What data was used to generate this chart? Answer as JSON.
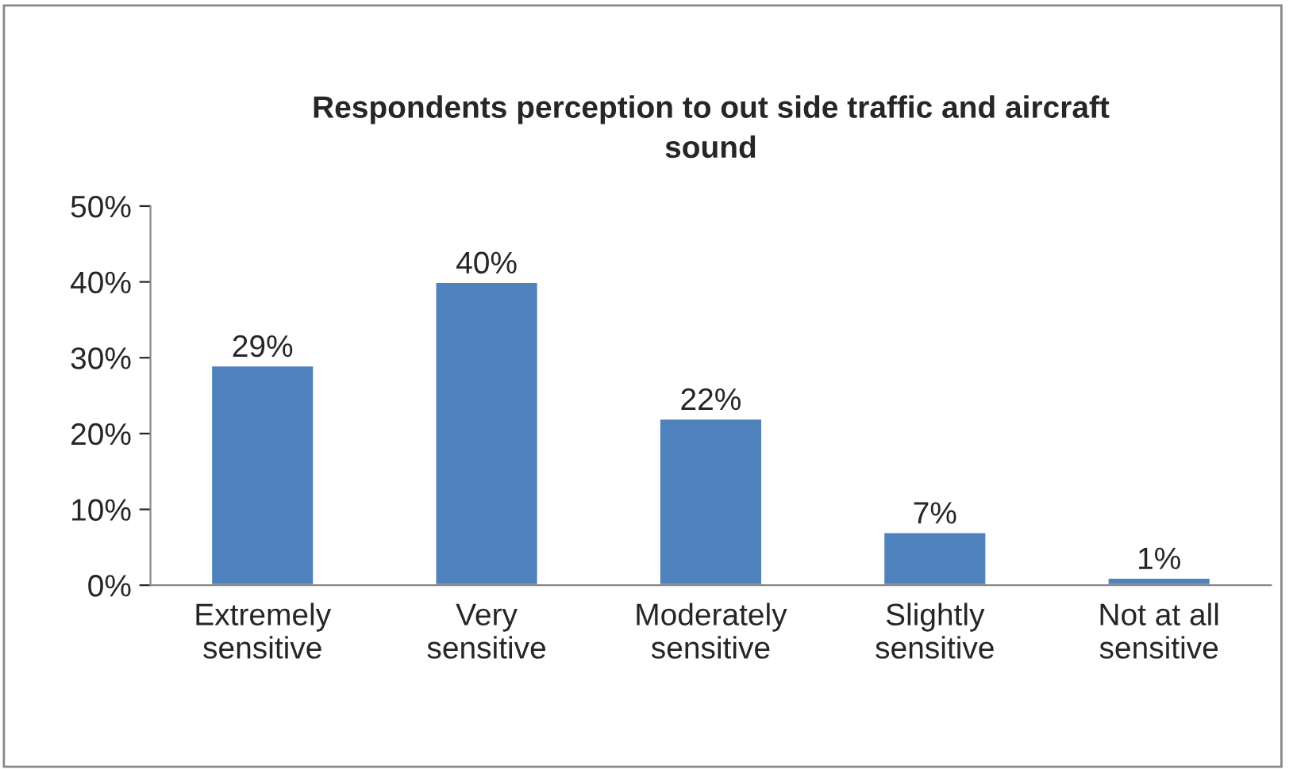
{
  "chart_data": {
    "type": "bar",
    "title": "Respondents perception to out side traffic and aircraft\nsound",
    "categories": [
      "Extremely\nsensitive",
      "Very\nsensitive",
      "Moderately\nsensitive",
      "Slightly\nsensitive",
      "Not at all\nsensitive"
    ],
    "values": [
      29,
      40,
      22,
      7,
      1
    ],
    "value_labels": [
      "29%",
      "40%",
      "22%",
      "7%",
      "1%"
    ],
    "color": "#4f81bd",
    "ylim": [
      0,
      50
    ],
    "yticks": [
      {
        "value": 0,
        "label": "0%"
      },
      {
        "value": 10,
        "label": "10%"
      },
      {
        "value": 20,
        "label": "20%"
      },
      {
        "value": 30,
        "label": "30%"
      },
      {
        "value": 40,
        "label": "40%"
      },
      {
        "value": 50,
        "label": "50%"
      }
    ],
    "grid": false,
    "legend": false
  }
}
